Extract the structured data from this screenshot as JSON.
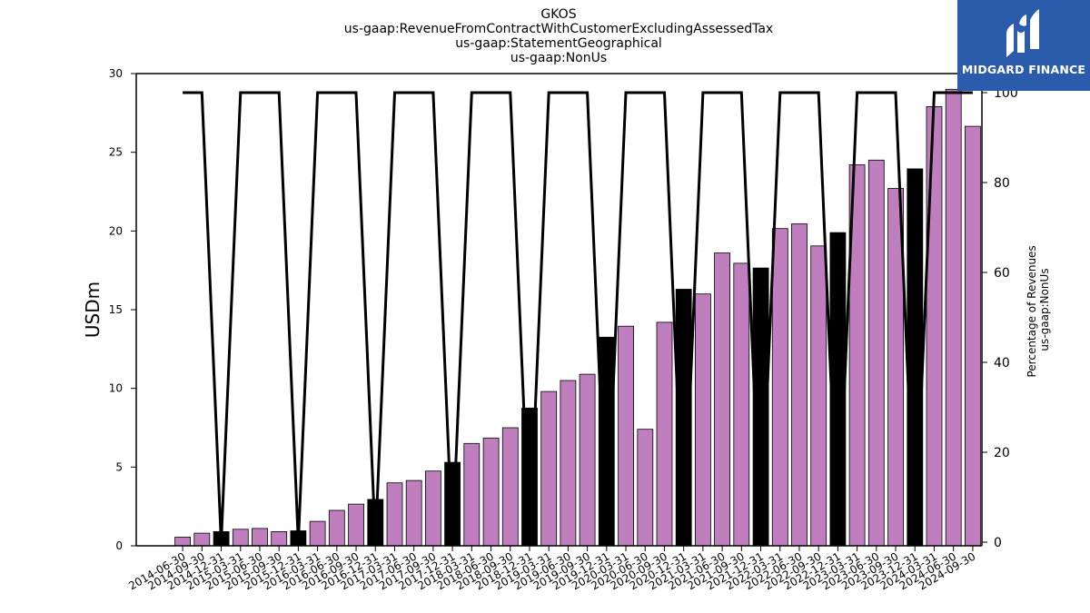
{
  "chart_data": {
    "type": "bar",
    "title_lines": [
      "GKOS",
      "us-gaap:RevenueFromContractWithCustomerExcludingAssessedTax",
      "us-gaap:StatementGeographical",
      "us-gaap:NonUs"
    ],
    "ylabel": "USDm",
    "y2label_lines": [
      "Percentage of Revenues",
      "us-gaap:NonUs"
    ],
    "ylim": [
      0,
      30
    ],
    "y2lim": [
      0,
      100
    ],
    "yticks": [
      0,
      5,
      10,
      15,
      20,
      25,
      30
    ],
    "y2ticks": [
      0,
      20,
      40,
      60,
      80,
      100
    ],
    "categories": [
      "2014-06-30",
      "2014-09-30",
      "2014-12-31",
      "2015-03-31",
      "2015-06-30",
      "2015-09-30",
      "2015-12-31",
      "2016-03-31",
      "2016-06-30",
      "2016-09-30",
      "2016-12-31",
      "2017-03-31",
      "2017-06-30",
      "2017-09-30",
      "2017-12-31",
      "2018-03-31",
      "2018-06-30",
      "2018-09-30",
      "2018-12-31",
      "2019-03-31",
      "2019-06-30",
      "2019-09-30",
      "2019-12-31",
      "2020-03-31",
      "2020-06-30",
      "2020-09-30",
      "2020-12-31",
      "2021-03-31",
      "2021-06-30",
      "2021-09-30",
      "2021-12-31",
      "2022-03-31",
      "2022-06-30",
      "2022-09-30",
      "2022-12-31",
      "2023-03-31",
      "2023-06-30",
      "2023-09-30",
      "2023-12-31",
      "2024-03-31",
      "2024-06-30",
      "2024-09-30"
    ],
    "series": [
      {
        "kind": "bar",
        "values": [
          0.55,
          0.8,
          0.9,
          1.05,
          1.1,
          0.9,
          0.95,
          1.55,
          2.25,
          2.65,
          2.95,
          4.0,
          4.15,
          4.75,
          5.3,
          6.5,
          6.85,
          7.5,
          8.75,
          9.8,
          10.5,
          10.9,
          13.25,
          13.95,
          7.4,
          14.2,
          16.3,
          16.0,
          18.6,
          17.95,
          17.65,
          20.15,
          20.45,
          19.05,
          19.9,
          24.2,
          24.5,
          22.7,
          23.95,
          27.9,
          29.0,
          26.65
        ]
      },
      {
        "kind": "line",
        "axis": "right",
        "values": [
          100,
          100,
          0,
          100,
          100,
          100,
          0,
          100,
          100,
          100,
          0,
          100,
          100,
          100,
          0,
          100,
          100,
          100,
          0,
          100,
          100,
          100,
          0,
          100,
          100,
          100,
          0,
          100,
          100,
          100,
          0,
          100,
          100,
          100,
          0,
          100,
          100,
          100,
          0,
          100,
          100,
          100
        ]
      }
    ],
    "colors": {
      "bar_regular": "#bf7fbf",
      "bar_year_end": "#000000",
      "line": "#000000"
    }
  },
  "logo": {
    "text": "MIDGARD FINANCE",
    "background": "#2b5bab"
  }
}
